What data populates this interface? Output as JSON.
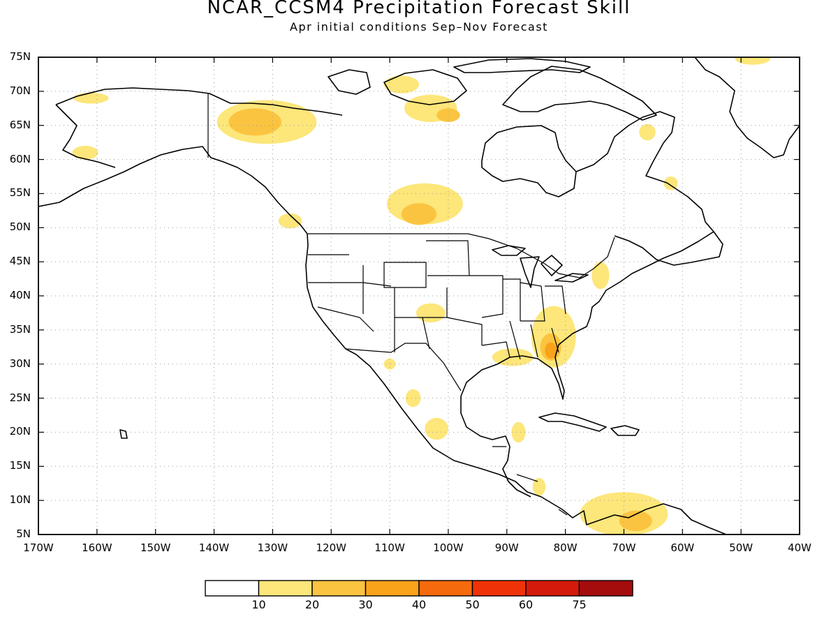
{
  "title": "NCAR_CCSM4 Precipitation Forecast Skill",
  "subtitle": "Apr initial conditions  Sep–Nov Forecast",
  "map": {
    "lon_range": [
      -170,
      -40
    ],
    "lat_range": [
      5,
      75
    ],
    "lat_labels": [
      "75N",
      "70N",
      "65N",
      "60N",
      "55N",
      "50N",
      "45N",
      "40N",
      "35N",
      "30N",
      "25N",
      "20N",
      "15N",
      "10N",
      "5N"
    ],
    "lon_labels": [
      "170W",
      "160W",
      "150W",
      "140W",
      "130W",
      "120W",
      "110W",
      "100W",
      "90W",
      "80W",
      "70W",
      "60W",
      "50W",
      "40W"
    ],
    "grid": "dotted"
  },
  "legend": {
    "colors": [
      "#ffffff",
      "#fde67a",
      "#fbc440",
      "#f9a31a",
      "#f56a0c",
      "#f03208",
      "#d41a0a",
      "#a50d0d"
    ],
    "labels": [
      "10",
      "20",
      "30",
      "40",
      "50",
      "60",
      "75"
    ]
  },
  "skill_regions": [
    {
      "level": 1,
      "lon": -131,
      "lat": 65.5,
      "rlon": 8.5,
      "rlat": 3.2
    },
    {
      "level": 2,
      "lon": -133,
      "lat": 65.5,
      "rlon": 4.5,
      "rlat": 2.0
    },
    {
      "level": 1,
      "lon": -108,
      "lat": 71.0,
      "rlon": 3.0,
      "rlat": 1.3
    },
    {
      "level": 1,
      "lon": -103,
      "lat": 67.5,
      "rlon": 4.5,
      "rlat": 2.0
    },
    {
      "level": 2,
      "lon": -100,
      "lat": 66.5,
      "rlon": 2.0,
      "rlat": 1.0
    },
    {
      "level": 1,
      "lon": -104,
      "lat": 53.5,
      "rlon": 6.5,
      "rlat": 3.0
    },
    {
      "level": 2,
      "lon": -105,
      "lat": 52.0,
      "rlon": 3.0,
      "rlat": 1.6
    },
    {
      "level": 1,
      "lon": -162,
      "lat": 61.0,
      "rlon": 2.2,
      "rlat": 1.0
    },
    {
      "level": 1,
      "lon": -161,
      "lat": 69.0,
      "rlon": 3.0,
      "rlat": 0.8
    },
    {
      "level": 1,
      "lon": -127,
      "lat": 51.0,
      "rlon": 2.0,
      "rlat": 1.1
    },
    {
      "level": 1,
      "lon": -82,
      "lat": 34.0,
      "rlon": 3.8,
      "rlat": 4.5
    },
    {
      "level": 2,
      "lon": -82.5,
      "lat": 32.5,
      "rlon": 1.8,
      "rlat": 2.0
    },
    {
      "level": 3,
      "lon": -82.5,
      "lat": 32.0,
      "rlon": 1.0,
      "rlat": 1.2
    },
    {
      "level": 1,
      "lon": -89,
      "lat": 31.0,
      "rlon": 3.5,
      "rlat": 1.3
    },
    {
      "level": 1,
      "lon": -70,
      "lat": 8.0,
      "rlon": 7.5,
      "rlat": 3.2
    },
    {
      "level": 2,
      "lon": -68,
      "lat": 7.0,
      "rlon": 2.8,
      "rlat": 1.5
    },
    {
      "level": 1,
      "lon": -103,
      "lat": 37.5,
      "rlon": 2.5,
      "rlat": 1.4
    },
    {
      "level": 1,
      "lon": -102,
      "lat": 20.5,
      "rlon": 2.0,
      "rlat": 1.6
    },
    {
      "level": 1,
      "lon": -74,
      "lat": 43.0,
      "rlon": 1.5,
      "rlat": 2.0
    },
    {
      "level": 1,
      "lon": -106,
      "lat": 25.0,
      "rlon": 1.3,
      "rlat": 1.3
    },
    {
      "level": 1,
      "lon": -88,
      "lat": 20.0,
      "rlon": 1.2,
      "rlat": 1.5
    },
    {
      "level": 1,
      "lon": -84.5,
      "lat": 12.0,
      "rlon": 1.1,
      "rlat": 1.3
    },
    {
      "level": 1,
      "lon": -66,
      "lat": 64.0,
      "rlon": 1.4,
      "rlat": 1.2
    },
    {
      "level": 1,
      "lon": -62,
      "lat": 56.5,
      "rlon": 1.2,
      "rlat": 1.0
    },
    {
      "level": 1,
      "lon": -48,
      "lat": 74.8,
      "rlon": 3.0,
      "rlat": 0.9
    },
    {
      "level": 1,
      "lon": -110,
      "lat": 30.0,
      "rlon": 1.0,
      "rlat": 0.8
    }
  ]
}
